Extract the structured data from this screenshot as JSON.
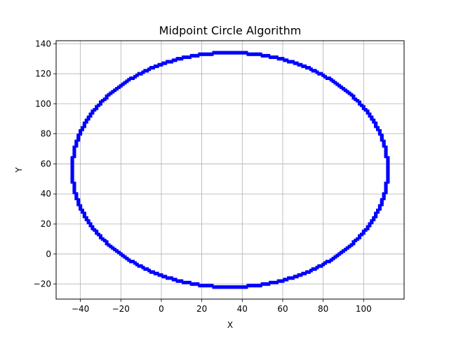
{
  "chart_data": {
    "type": "scatter",
    "title": "Midpoint Circle Algorithm",
    "xlabel": "X",
    "ylabel": "Y",
    "xlim": [
      -52,
      120
    ],
    "ylim": [
      -30,
      142
    ],
    "xticks": [
      -40,
      -20,
      0,
      20,
      40,
      60,
      80,
      100
    ],
    "yticks": [
      -20,
      0,
      20,
      40,
      60,
      80,
      100,
      120,
      140
    ],
    "grid": true,
    "legend": "none",
    "marker_color": "#0000ff",
    "marker": "square",
    "shape": "circle",
    "center": [
      34,
      56
    ],
    "radius": 78
  }
}
